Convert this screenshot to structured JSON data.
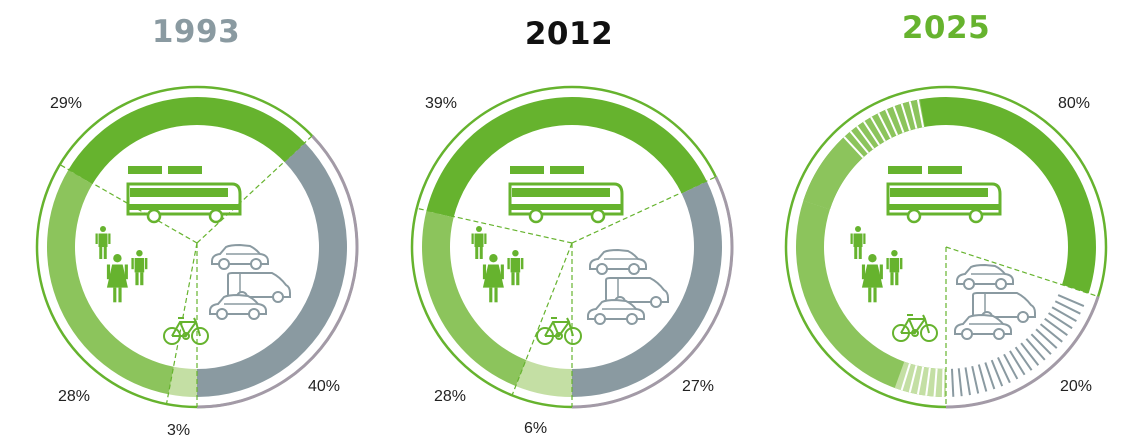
{
  "chart_data": [
    {
      "type": "pie",
      "title": "1993",
      "title_color": "#8a9aa1",
      "categories": [
        "public transport",
        "walking",
        "cycling",
        "car"
      ],
      "values": [
        29,
        28,
        3,
        40
      ],
      "labels": [
        "29%",
        "28%",
        "3%",
        "40%"
      ]
    },
    {
      "type": "pie",
      "title": "2012",
      "title_color": "#111111",
      "categories": [
        "public transport",
        "walking",
        "cycling",
        "car"
      ],
      "values": [
        39,
        28,
        6,
        27
      ],
      "labels": [
        "39%",
        "28%",
        "6%",
        "27%"
      ]
    },
    {
      "type": "pie",
      "title": "2025",
      "title_color": "#66b32e",
      "categories": [
        "sustainable modes",
        "car"
      ],
      "values": [
        80,
        20
      ],
      "labels": [
        "80%",
        "20%"
      ]
    }
  ],
  "colors": {
    "dark_green": "#66b32e",
    "mid_green": "#8cc45c",
    "light_green": "#c4dfa4",
    "grey": "#8a9aa1",
    "outer_grey": "#a39aa7"
  },
  "icons": [
    "bus-icon",
    "pedestrians-icon",
    "cars-icon",
    "bicycle-icon"
  ]
}
